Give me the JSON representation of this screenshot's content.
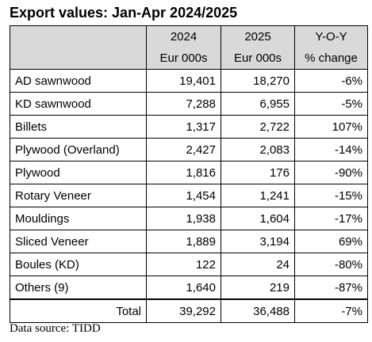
{
  "title": "Export values: Jan-Apr 2024/2025",
  "header": {
    "col1_top": "2024",
    "col2_top": "2025",
    "col3_top": "Y-O-Y",
    "col1_bottom": "Eur 000s",
    "col2_bottom": "Eur 000s",
    "col3_bottom": "% change"
  },
  "rows": [
    {
      "label": "AD sawnwood",
      "v2024": "19,401",
      "v2025": "18,270",
      "change": "-6%"
    },
    {
      "label": "KD sawnwood",
      "v2024": "7,288",
      "v2025": "6,955",
      "change": "-5%"
    },
    {
      "label": "Billets",
      "v2024": "1,317",
      "v2025": "2,722",
      "change": "107%"
    },
    {
      "label": "Plywood (Overland)",
      "v2024": "2,427",
      "v2025": "2,083",
      "change": "-14%"
    },
    {
      "label": "Plywood",
      "v2024": "1,816",
      "v2025": "176",
      "change": "-90%"
    },
    {
      "label": "Rotary Veneer",
      "v2024": "1,454",
      "v2025": "1,241",
      "change": "-15%"
    },
    {
      "label": "Mouldings",
      "v2024": "1,938",
      "v2025": "1,604",
      "change": "-17%"
    },
    {
      "label": "Sliced Veneer",
      "v2024": "1,889",
      "v2025": "3,194",
      "change": "69%"
    },
    {
      "label": "Boules (KD)",
      "v2024": "122",
      "v2025": "24",
      "change": "-80%"
    },
    {
      "label": "Others (9)",
      "v2024": "1,640",
      "v2025": "219",
      "change": "-87%"
    }
  ],
  "total": {
    "label": "Total",
    "v2024": "39,292",
    "v2025": "36,488",
    "change": "-7%"
  },
  "source": "Data source: TIDD"
}
